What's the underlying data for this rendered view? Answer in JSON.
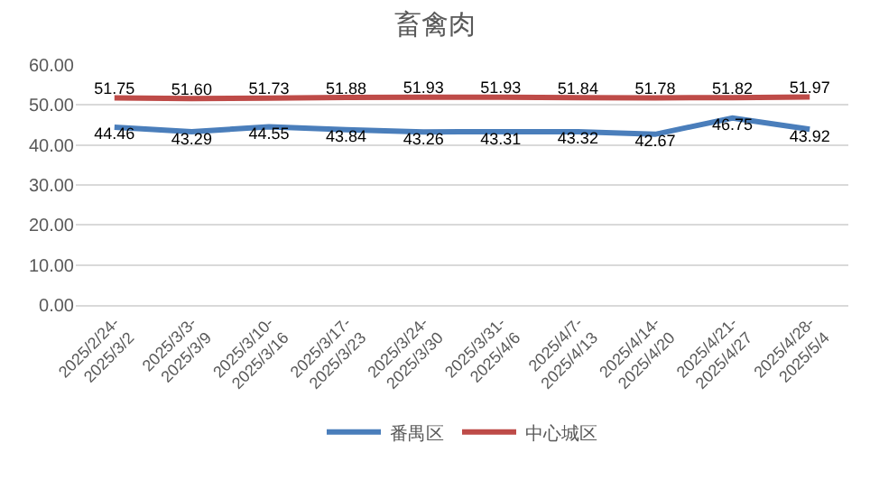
{
  "chart_data": {
    "type": "line",
    "title": "畜禽肉",
    "categories": [
      "2025/2/24-2025/3/2",
      "2025/3/3-2025/3/9",
      "2025/3/10-2025/3/16",
      "2025/3/17-2025/3/23",
      "2025/3/24-2025/3/30",
      "2025/3/31-2025/4/6",
      "2025/4/7-2025/4/13",
      "2025/4/14-2025/4/20",
      "2025/4/21-2025/4/27",
      "2025/4/28-2025/5/4"
    ],
    "series": [
      {
        "name": "番禺区",
        "color": "#4a7ebb",
        "values": [
          44.46,
          43.29,
          44.55,
          43.84,
          43.26,
          43.31,
          43.32,
          42.67,
          46.75,
          43.92
        ],
        "value_labels": [
          "44.46",
          "43.29",
          "44.55",
          "43.84",
          "43.26",
          "43.31",
          "43.32",
          "42.67",
          "46.75",
          "43.92"
        ]
      },
      {
        "name": "中心城区",
        "color": "#be4b48",
        "values": [
          51.75,
          51.6,
          51.73,
          51.88,
          51.93,
          51.93,
          51.84,
          51.78,
          51.82,
          51.97
        ],
        "value_labels": [
          "51.75",
          "51.60",
          "51.73",
          "51.88",
          "51.93",
          "51.93",
          "51.84",
          "51.78",
          "51.82",
          "51.97"
        ]
      }
    ],
    "ylim": [
      0,
      60
    ],
    "yticks": [
      {
        "value": 0,
        "label": "0.00"
      },
      {
        "value": 10,
        "label": "10.00"
      },
      {
        "value": 20,
        "label": "20.00"
      },
      {
        "value": 30,
        "label": "30.00"
      },
      {
        "value": 40,
        "label": "40.00"
      },
      {
        "value": 50,
        "label": "50.00"
      },
      {
        "value": 60,
        "label": "60.00"
      }
    ],
    "grid": "y",
    "legend": "bottom",
    "marker": "none",
    "line_style": "solid"
  }
}
